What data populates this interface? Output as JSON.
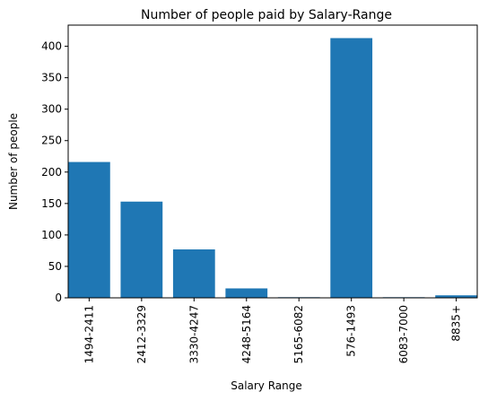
{
  "chart_data": {
    "type": "bar",
    "title": "Number of people paid by Salary-Range",
    "xlabel": "Salary Range",
    "ylabel": "Number of people",
    "categories": [
      "1494-2411",
      "2412-3329",
      "3330-4247",
      "4248-5164",
      "5165-6082",
      "576-1493",
      "6083-7000",
      "8835+"
    ],
    "values": [
      216,
      153,
      77,
      15,
      1,
      413,
      1,
      4
    ],
    "ylim": [
      0,
      433.65
    ],
    "yticks": [
      0,
      50,
      100,
      150,
      200,
      250,
      300,
      350,
      400
    ],
    "grid": false,
    "bar_color": "#1f77b4"
  }
}
